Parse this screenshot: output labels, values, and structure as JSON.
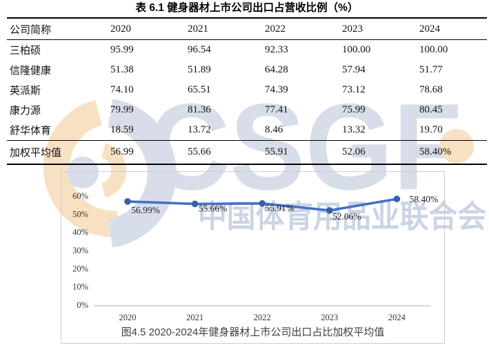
{
  "table": {
    "title": "表 6.1 健身器材上市公司出口占营收比例（%）",
    "columns": [
      "公司简称",
      "2020",
      "2021",
      "2022",
      "2023",
      "2024"
    ],
    "rows": [
      {
        "name": "三柏硕",
        "values": [
          "95.99",
          "96.54",
          "92.33",
          "100.00",
          "100.00"
        ]
      },
      {
        "name": "信隆健康",
        "values": [
          "51.38",
          "51.89",
          "64.28",
          "57.94",
          "51.77"
        ]
      },
      {
        "name": "英派斯",
        "values": [
          "74.10",
          "65.51",
          "74.39",
          "73.12",
          "78.68"
        ]
      },
      {
        "name": "康力源",
        "values": [
          "79.99",
          "81.36",
          "77.41",
          "75.99",
          "80.45"
        ]
      },
      {
        "name": "舒华体育",
        "values": [
          "18.59",
          "13.72",
          "8.46",
          "13.32",
          "19.70"
        ]
      }
    ],
    "summary_row": {
      "name": "加权平均值",
      "values": [
        "56.99",
        "55.66",
        "55.91",
        "52.06",
        "58.40%"
      ]
    }
  },
  "chart_data": {
    "type": "line",
    "title": "",
    "caption": "图4.5 2020-2024年健身器材上市公司出口占比加权平均值",
    "categories": [
      "2020",
      "2021",
      "2022",
      "2023",
      "2024"
    ],
    "values": [
      56.99,
      55.66,
      55.91,
      52.06,
      58.4
    ],
    "point_labels": [
      "56.99%",
      "55.66%",
      "55.91%",
      "52.06%",
      "58.40%"
    ],
    "series_name": "加权平均值",
    "xlabel": "",
    "ylabel": "",
    "y_ticks": [
      "60%",
      "50%",
      "40%",
      "30%",
      "20%",
      "10%",
      "0%"
    ],
    "ylim": [
      0,
      65
    ],
    "grid": false,
    "legend_position": "none",
    "line_color": "#4472C4",
    "marker_color": "#3A5FA9"
  },
  "watermark": {
    "letters": "CSGF",
    "org_name": "中国体育用品业联合会",
    "accent_orange": "#F8E0C3",
    "accent_blue": "#D8DEE9"
  }
}
